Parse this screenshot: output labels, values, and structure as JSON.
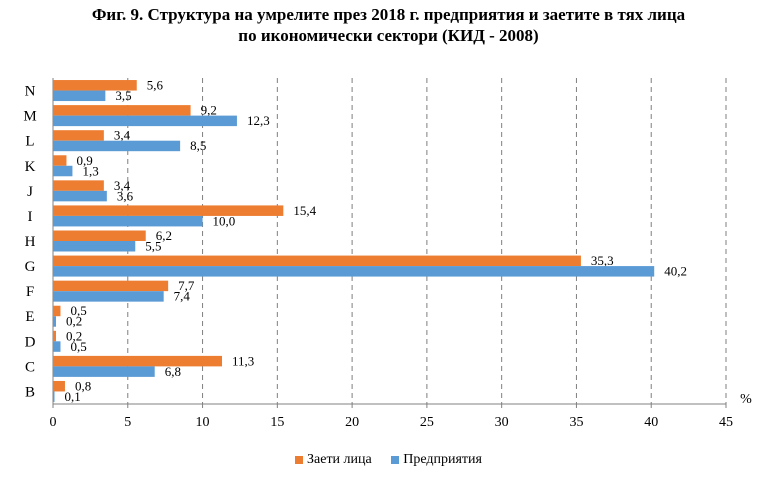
{
  "title": {
    "line1": "Фиг. 9. Структура на умрелите през 2018 г. предприятия и заетите в тях лица",
    "line2": "по икономически сектори (КИД - 2008)"
  },
  "chart_data": {
    "type": "bar",
    "orientation": "horizontal",
    "categories": [
      "N",
      "M",
      "L",
      "K",
      "J",
      "I",
      "H",
      "G",
      "F",
      "E",
      "D",
      "C",
      "B"
    ],
    "series": [
      {
        "name": "Заети лица",
        "color": "#ED7D31",
        "values": [
          5.6,
          9.2,
          3.4,
          0.9,
          3.4,
          15.4,
          6.2,
          35.3,
          7.7,
          0.5,
          0.2,
          11.3,
          0.8
        ],
        "labels": [
          "5,6",
          "9,2",
          "3,4",
          "0,9",
          "3,4",
          "15,4",
          "6,2",
          "35,3",
          "7,7",
          "0,5",
          "0,2",
          "11,3",
          "0,8"
        ]
      },
      {
        "name": "Предприятия",
        "color": "#5B9BD5",
        "values": [
          3.5,
          12.3,
          8.5,
          1.3,
          3.6,
          10.0,
          5.5,
          40.2,
          7.4,
          0.2,
          0.5,
          6.8,
          0.1
        ],
        "labels": [
          "3,5",
          "12,3",
          "8,5",
          "1,3",
          "3,6",
          "10,0",
          "5,5",
          "40,2",
          "7,4",
          "0,2",
          "0,5",
          "6,8",
          "0,1"
        ]
      }
    ],
    "x_ticks": [
      0,
      5,
      10,
      15,
      20,
      25,
      30,
      35,
      40,
      45
    ],
    "xlim": [
      0,
      45
    ],
    "unit_label": "%",
    "grid": "vertical dashed",
    "legend_position": "bottom"
  }
}
